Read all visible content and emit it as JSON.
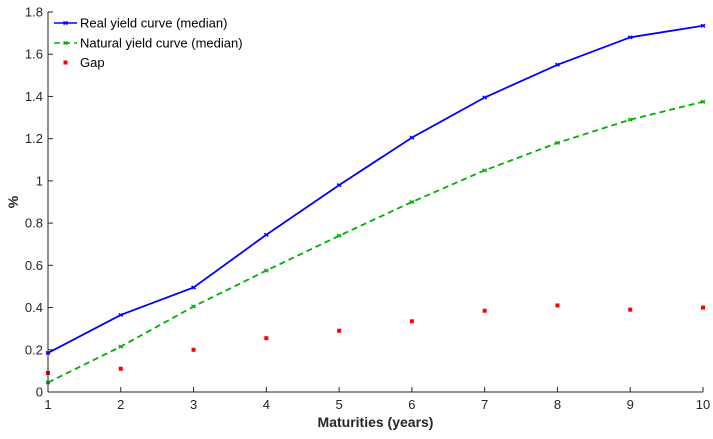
{
  "chart_data": {
    "type": "line",
    "xlabel": "Maturities (years)",
    "ylabel": "%",
    "x": [
      1,
      2,
      3,
      4,
      5,
      6,
      7,
      8,
      9,
      10
    ],
    "xlim": [
      1,
      10
    ],
    "ylim": [
      0,
      1.8
    ],
    "xticks": [
      "1",
      "2",
      "3",
      "4",
      "5",
      "6",
      "7",
      "8",
      "9",
      "10"
    ],
    "yticks": [
      "0",
      "0.2",
      "0.4",
      "0.6",
      "0.8",
      "1",
      "1.2",
      "1.4",
      "1.6",
      "1.8"
    ],
    "grid": false,
    "legend_position": "top-left",
    "series": [
      {
        "name": "Real yield curve (median)",
        "style": "solid line with x markers",
        "color": "#0000ff",
        "values": [
          0.185,
          0.365,
          0.495,
          0.745,
          0.98,
          1.205,
          1.395,
          1.55,
          1.68,
          1.735
        ]
      },
      {
        "name": "Natural yield curve (median)",
        "style": "dashed line with x markers",
        "color": "#00b000",
        "values": [
          0.045,
          0.215,
          0.405,
          0.575,
          0.74,
          0.9,
          1.05,
          1.18,
          1.29,
          1.375
        ]
      },
      {
        "name": "Gap",
        "style": "square markers",
        "color": "#ff0000",
        "values": [
          0.09,
          0.11,
          0.2,
          0.255,
          0.29,
          0.335,
          0.385,
          0.41,
          0.39,
          0.4
        ]
      }
    ]
  }
}
